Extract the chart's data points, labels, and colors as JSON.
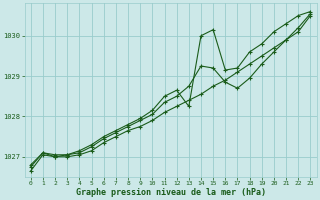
{
  "bg_color": "#cce8e8",
  "grid_color": "#99cccc",
  "line_color": "#1a5c1a",
  "xlabel": "Graphe pression niveau de la mer (hPa)",
  "xlim": [
    -0.5,
    23.5
  ],
  "ylim": [
    1026.5,
    1030.8
  ],
  "yticks": [
    1027,
    1028,
    1029,
    1030
  ],
  "xticks": [
    0,
    1,
    2,
    3,
    4,
    5,
    6,
    7,
    8,
    9,
    10,
    11,
    12,
    13,
    14,
    15,
    16,
    17,
    18,
    19,
    20,
    21,
    22,
    23
  ],
  "line1_x": [
    0,
    1,
    2,
    3,
    4,
    5,
    6,
    7,
    8,
    9,
    10,
    11,
    12,
    13,
    14,
    15,
    16,
    17,
    18,
    19,
    20,
    21,
    22,
    23
  ],
  "line1_y": [
    1026.65,
    1027.05,
    1027.0,
    1027.0,
    1027.05,
    1027.15,
    1027.35,
    1027.5,
    1027.65,
    1027.75,
    1027.9,
    1028.1,
    1028.25,
    1028.4,
    1028.55,
    1028.75,
    1028.9,
    1029.1,
    1029.3,
    1029.5,
    1029.7,
    1029.9,
    1030.1,
    1030.5
  ],
  "line2_x": [
    0,
    1,
    2,
    3,
    4,
    5,
    6,
    7,
    8,
    9,
    10,
    11,
    12,
    13,
    14,
    15,
    16,
    17,
    18,
    19,
    20,
    21,
    22,
    23
  ],
  "line2_y": [
    1026.75,
    1027.1,
    1027.0,
    1027.05,
    1027.1,
    1027.25,
    1027.45,
    1027.6,
    1027.75,
    1027.9,
    1028.05,
    1028.35,
    1028.5,
    1028.75,
    1029.25,
    1029.2,
    1028.85,
    1028.7,
    1028.95,
    1029.3,
    1029.6,
    1029.9,
    1030.2,
    1030.55
  ],
  "line3_x": [
    0,
    1,
    2,
    3,
    4,
    5,
    6,
    7,
    8,
    9,
    10,
    11,
    12,
    13,
    14,
    15,
    16,
    17,
    18,
    19,
    20,
    21,
    22,
    23
  ],
  "line3_y": [
    1026.8,
    1027.1,
    1027.05,
    1027.05,
    1027.15,
    1027.3,
    1027.5,
    1027.65,
    1027.8,
    1027.95,
    1028.15,
    1028.5,
    1028.65,
    1028.25,
    1030.0,
    1030.15,
    1029.15,
    1029.2,
    1029.6,
    1029.8,
    1030.1,
    1030.3,
    1030.5,
    1030.6
  ]
}
